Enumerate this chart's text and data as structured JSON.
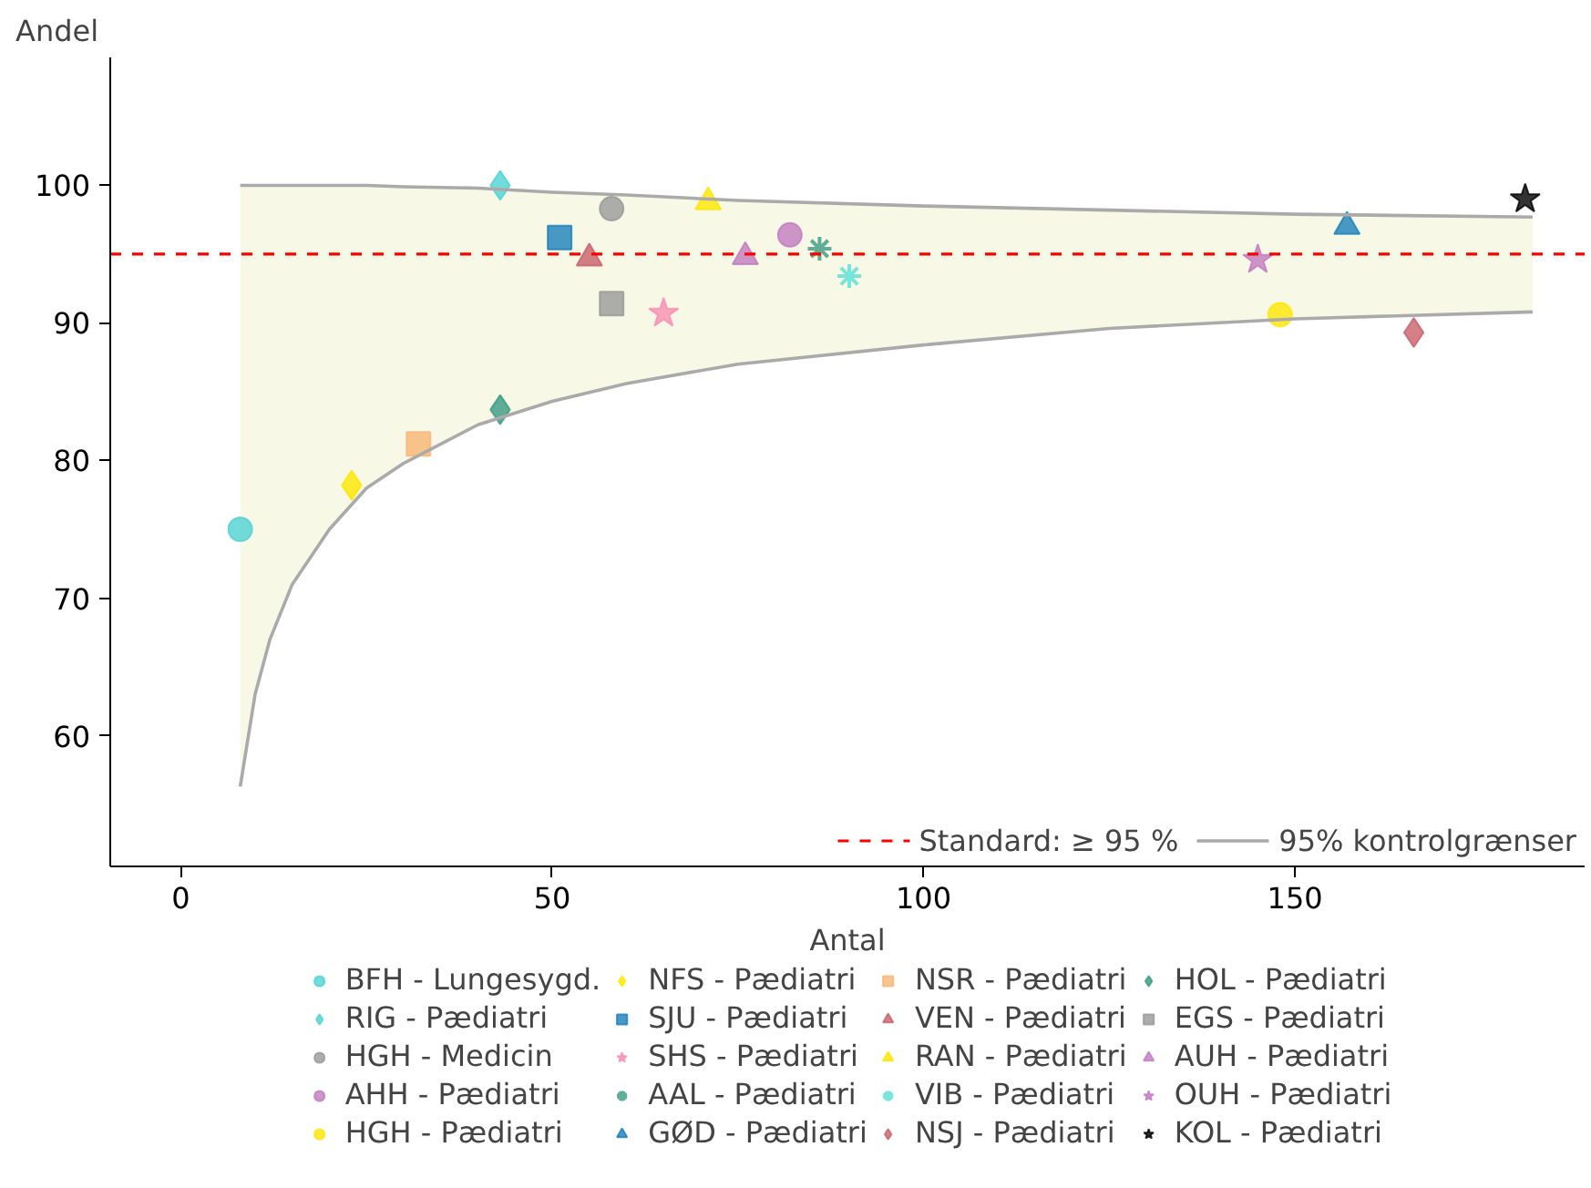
{
  "chart_data": {
    "type": "scatter",
    "xlabel": "Antal",
    "ylabel": "Andel",
    "xlim": [
      -9.5,
      189
    ],
    "xticks": [
      0,
      50,
      100,
      150
    ],
    "ylim": [
      50.5,
      109.3
    ],
    "yticks": [
      60,
      70,
      80,
      90,
      100
    ],
    "grid": false,
    "legend": "bottom",
    "ref_lines": [
      {
        "axis": "y",
        "value": 95,
        "label": "Standard: ≥ 95 %",
        "color": "#ff0000",
        "line_style": "dashed"
      }
    ],
    "series": [
      {
        "name": "BFH - Lungesygd.",
        "color": "#4fd2d2",
        "marker": "circle",
        "x": [
          8
        ],
        "values": [
          75
        ]
      },
      {
        "name": "RIG - Pædiatri",
        "color": "#4fd2d2",
        "marker": "diamond",
        "x": [
          43
        ],
        "values": [
          100
        ]
      },
      {
        "name": "HGH - Medicin",
        "color": "#999999",
        "marker": "circle",
        "x": [
          58
        ],
        "values": [
          98.3
        ]
      },
      {
        "name": "AHH - Pædiatri",
        "color": "#c27bc0",
        "marker": "circle",
        "x": [
          82
        ],
        "values": [
          96.4
        ]
      },
      {
        "name": "HGH - Pædiatri",
        "color": "#ffe600",
        "marker": "circle",
        "x": [
          148
        ],
        "values": [
          90.6
        ]
      },
      {
        "name": "NFS - Pædiatri",
        "color": "#ffe600",
        "marker": "diamond",
        "x": [
          23
        ],
        "values": [
          78.2
        ]
      },
      {
        "name": "SJU - Pædiatri",
        "color": "#1a7fba",
        "marker": "square",
        "x": [
          51
        ],
        "values": [
          96.2
        ]
      },
      {
        "name": "SHS - Pædiatri",
        "color": "#f78fb3",
        "marker": "star",
        "x": [
          65
        ],
        "values": [
          90.7
        ]
      },
      {
        "name": "AAL - Pædiatri",
        "color": "#3a9a83",
        "marker": "cross",
        "x": [
          86
        ],
        "values": [
          95.4
        ]
      },
      {
        "name": "GØD - Pædiatri",
        "color": "#1a7fba",
        "marker": "triangle",
        "x": [
          157
        ],
        "values": [
          97
        ]
      },
      {
        "name": "NSR - Pædiatri",
        "color": "#f7b574",
        "marker": "square",
        "x": [
          32
        ],
        "values": [
          81.2
        ]
      },
      {
        "name": "VEN - Pædiatri",
        "color": "#c8606a",
        "marker": "triangle",
        "x": [
          55
        ],
        "values": [
          94.7
        ]
      },
      {
        "name": "RAN - Pædiatri",
        "color": "#ffe600",
        "marker": "triangle",
        "x": [
          71
        ],
        "values": [
          98.8
        ]
      },
      {
        "name": "VIB - Pædiatri",
        "color": "#56e0d6",
        "marker": "cross",
        "x": [
          90
        ],
        "values": [
          93.4
        ]
      },
      {
        "name": "NSJ - Pædiatri",
        "color": "#c8606a",
        "marker": "diamond",
        "x": [
          166
        ],
        "values": [
          89.3
        ]
      },
      {
        "name": "HOL - Pædiatri",
        "color": "#3a9a83",
        "marker": "diamond",
        "x": [
          43
        ],
        "values": [
          83.7
        ]
      },
      {
        "name": "EGS - Pædiatri",
        "color": "#999999",
        "marker": "square",
        "x": [
          58
        ],
        "values": [
          91.4
        ]
      },
      {
        "name": "AUH - Pædiatri",
        "color": "#c27bc0",
        "marker": "triangle",
        "x": [
          76
        ],
        "values": [
          94.8
        ]
      },
      {
        "name": "OUH - Pædiatri",
        "color": "#c27bc0",
        "marker": "star",
        "x": [
          145
        ],
        "values": [
          94.6
        ]
      },
      {
        "name": "KOL - Pædiatri",
        "color": "#000000",
        "marker": "star",
        "x": [
          181
        ],
        "values": [
          99
        ]
      },
      {
        "name": "95% kontrolgrænser",
        "type": "line",
        "color": "#aaaaaa",
        "x": [
          8,
          10,
          12,
          15,
          20,
          25,
          30,
          40,
          50,
          60,
          75,
          100,
          125,
          150,
          182
        ],
        "values": [
          100,
          100,
          100,
          100,
          100,
          100,
          99.9,
          99.8,
          99.5,
          99.3,
          98.9,
          98.5,
          98.2,
          97.9,
          97.7
        ],
        "lower": [
          56.3,
          63,
          67,
          71,
          75,
          78,
          79.8,
          82.6,
          84.3,
          85.6,
          87,
          88.4,
          89.6,
          90.3,
          90.8
        ],
        "upper": [
          100,
          100,
          100,
          100,
          100,
          100,
          99.9,
          99.8,
          99.5,
          99.3,
          98.9,
          98.5,
          98.2,
          97.9,
          97.7
        ]
      },
      {
        "type": "line",
        "color": "#aaaaaa",
        "x": [
          8,
          10,
          12,
          15,
          20,
          25,
          30,
          40,
          50,
          60,
          75,
          100,
          125,
          150,
          182
        ],
        "values": [
          56.3,
          63,
          67,
          71,
          75,
          78,
          79.8,
          82.6,
          84.3,
          85.6,
          87,
          88.4,
          89.6,
          90.3,
          90.8
        ]
      }
    ]
  }
}
